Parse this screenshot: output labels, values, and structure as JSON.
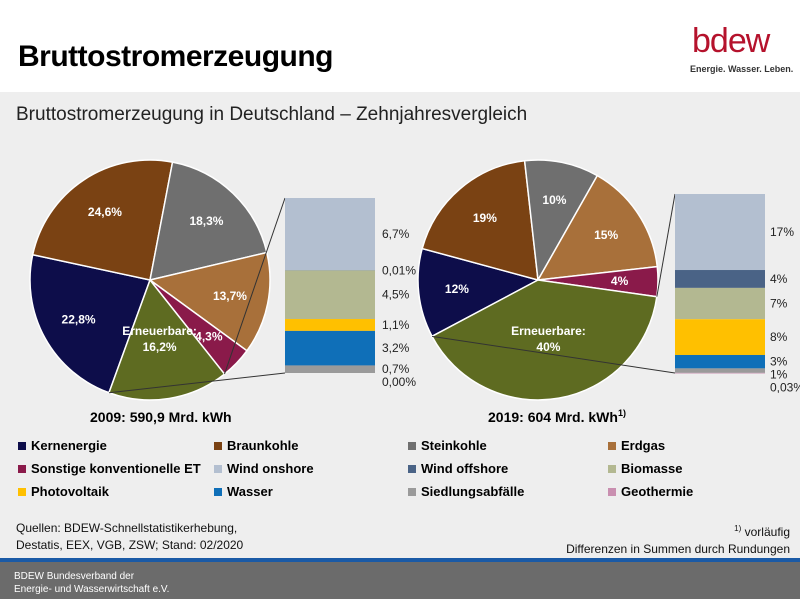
{
  "header": {
    "title": "Bruttostromerzeugung",
    "logo_word": "bdew",
    "logo_tagline": "Energie. Wasser. Leben."
  },
  "subtitle": "Bruttostromerzeugung in Deutschland – Zehnjahresvergleich",
  "colors": {
    "Kernenergie": "#0d0d4a",
    "Braunkohle": "#7a4213",
    "Steinkohle": "#6f6f6f",
    "Erdgas": "#a8703a",
    "Sonstige konventionelle ET": "#8a1a4a",
    "Erneuerbare": "#5e6b21",
    "Wind onshore": "#b3bfd0",
    "Wind offshore": "#4a6386",
    "Biomasse": "#b3b891",
    "Photovoltaik": "#ffc000",
    "Wasser": "#0f6fb8",
    "Siedlungsabfälle": "#9a9a9a",
    "Geothermie": "#c98fb0"
  },
  "chart_data": [
    {
      "type": "pie",
      "title": "2009: 590,9 Mrd. kWh",
      "slices": [
        {
          "name": "Kernenergie",
          "value": 22.8,
          "label": "22,8%"
        },
        {
          "name": "Braunkohle",
          "value": 24.6,
          "label": "24,6%"
        },
        {
          "name": "Steinkohle",
          "value": 18.3,
          "label": "18,3%"
        },
        {
          "name": "Erdgas",
          "value": 13.7,
          "label": "13,7%"
        },
        {
          "name": "Sonstige konventionelle ET",
          "value": 4.3,
          "label": "4,3%"
        },
        {
          "name": "Erneuerbare",
          "value": 16.2,
          "label": "Erneuerbare:",
          "label2": "16,2%"
        }
      ],
      "breakdown": [
        {
          "name": "Wind onshore",
          "value": 6.7,
          "label": "6,7%"
        },
        {
          "name": "Wind offshore",
          "value": 0.01,
          "label": "0,01%"
        },
        {
          "name": "Biomasse",
          "value": 4.5,
          "label": "4,5%"
        },
        {
          "name": "Photovoltaik",
          "value": 1.1,
          "label": "1,1%"
        },
        {
          "name": "Wasser",
          "value": 3.2,
          "label": "3,2%"
        },
        {
          "name": "Siedlungsabfälle",
          "value": 0.7,
          "label": "0,7%"
        },
        {
          "name": "Geothermie",
          "value": 0.0,
          "label": "0,00%"
        }
      ]
    },
    {
      "type": "pie",
      "title": "2019: 604 Mrd. kWh",
      "title_sup": "1)",
      "slices": [
        {
          "name": "Kernenergie",
          "value": 12,
          "label": "12%"
        },
        {
          "name": "Braunkohle",
          "value": 19,
          "label": "19%"
        },
        {
          "name": "Steinkohle",
          "value": 10,
          "label": "10%"
        },
        {
          "name": "Erdgas",
          "value": 15,
          "label": "15%"
        },
        {
          "name": "Sonstige konventionelle ET",
          "value": 4,
          "label": "4%"
        },
        {
          "name": "Erneuerbare",
          "value": 40,
          "label": "Erneuerbare:",
          "label2": "40%"
        }
      ],
      "breakdown": [
        {
          "name": "Wind onshore",
          "value": 17,
          "label": "17%"
        },
        {
          "name": "Wind offshore",
          "value": 4,
          "label": "4%"
        },
        {
          "name": "Biomasse",
          "value": 7,
          "label": "7%"
        },
        {
          "name": "Photovoltaik",
          "value": 8,
          "label": "8%"
        },
        {
          "name": "Wasser",
          "value": 3,
          "label": "3%"
        },
        {
          "name": "Siedlungsabfälle",
          "value": 1,
          "label": "1%"
        },
        {
          "name": "Geothermie",
          "value": 0.03,
          "label": "0,03%"
        }
      ]
    }
  ],
  "legend": [
    "Kernenergie",
    "Braunkohle",
    "Steinkohle",
    "Erdgas",
    "Sonstige konventionelle ET",
    "Wind onshore",
    "Wind offshore",
    "Biomasse",
    "Photovoltaik",
    "Wasser",
    "Siedlungsabfälle",
    "Geothermie"
  ],
  "sources": {
    "line1": "Quellen: BDEW-Schnellstatistikerhebung,",
    "line2": "Destatis, EEX, VGB, ZSW; Stand: 02/2020"
  },
  "notes": {
    "sup": "1)",
    "line1": " vorläufig",
    "line2": "Differenzen in Summen durch Rundungen"
  },
  "footer": {
    "line1": "BDEW Bundesverband der",
    "line2": "Energie- und Wasserwirtschaft e.V."
  }
}
